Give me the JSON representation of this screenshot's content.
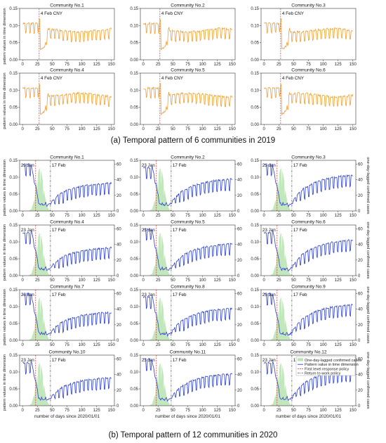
{
  "colors": {
    "pattern_2019": "#f0a030",
    "pattern_2020": "#2b3fd1",
    "cases_fill": "#b9e3b0",
    "first_level": "#d0312d",
    "return_work": "#555555"
  },
  "section_a": {
    "caption": "(a) Temporal pattern of 6 communities in 2019",
    "ylabel": "pattern values in time dimension",
    "marker_label": "4 Feb CNY"
  },
  "section_b": {
    "caption": "(b) Temporal pattern of 12 communities in 2020",
    "ylabel": "pattern values in time dimension",
    "y2label": "one-day-lagged confirmed cases",
    "xlabel": "number of days since 2020/01/01",
    "marker1_label": "23 Jan",
    "marker2_label": "17 Feb",
    "legend": [
      {
        "label": "One-day-lagged confirmed cases",
        "kind": "fill"
      },
      {
        "label": "Pattern value in time dimension",
        "kind": "line"
      },
      {
        "label": "First level response policy",
        "kind": "dash-red"
      },
      {
        "label": "Return to work policy",
        "kind": "dash-gray"
      }
    ]
  },
  "chart_data": [
    {
      "type": "line",
      "section": "a",
      "panels": [
        "Community No.1",
        "Community No.2",
        "Community No.3",
        "Community No.4",
        "Community No.5",
        "Community No.6"
      ],
      "xlim": [
        -5,
        155
      ],
      "xticks": [
        0,
        25,
        50,
        75,
        100,
        125,
        150
      ],
      "ylim": [
        0,
        0.15
      ],
      "yticks": [
        "0.00",
        "0.05",
        "0.10",
        "0.15"
      ],
      "marker_x": 28,
      "series_shape": {
        "before_level": 0.1,
        "dip_min": 0.03,
        "dip_start": 30,
        "dip_end": 38,
        "after_level": 0.08,
        "weekly_amplitude": 0.015
      }
    },
    {
      "type": "line",
      "section": "b",
      "panels": [
        "Community No.1",
        "Community No.2",
        "Community No.3",
        "Community No.4",
        "Community No.5",
        "Community No.6",
        "Community No.7",
        "Community No.8",
        "Community No.9",
        "Community No.10",
        "Community No.11",
        "Community No.12"
      ],
      "xlim": [
        -5,
        155
      ],
      "xticks": [
        0,
        25,
        50,
        75,
        100,
        125,
        150
      ],
      "ylim": [
        0,
        0.15
      ],
      "yticks": [
        "0.00",
        "0.05",
        "0.10",
        "0.15"
      ],
      "y2lim": [
        0,
        65
      ],
      "y2ticks": [
        0,
        20,
        40,
        60
      ],
      "marker1_x": 22,
      "marker2_x": 47,
      "cases": {
        "start": 5,
        "peak_x": 29,
        "peak": 55,
        "end": 58
      },
      "series_shape": {
        "before_level": 0.13,
        "low": 0.02,
        "drop_start": 15,
        "drop_end": 28,
        "recover_end": 150,
        "final_level": 0.09,
        "weekly_amplitude": 0.015
      }
    }
  ]
}
